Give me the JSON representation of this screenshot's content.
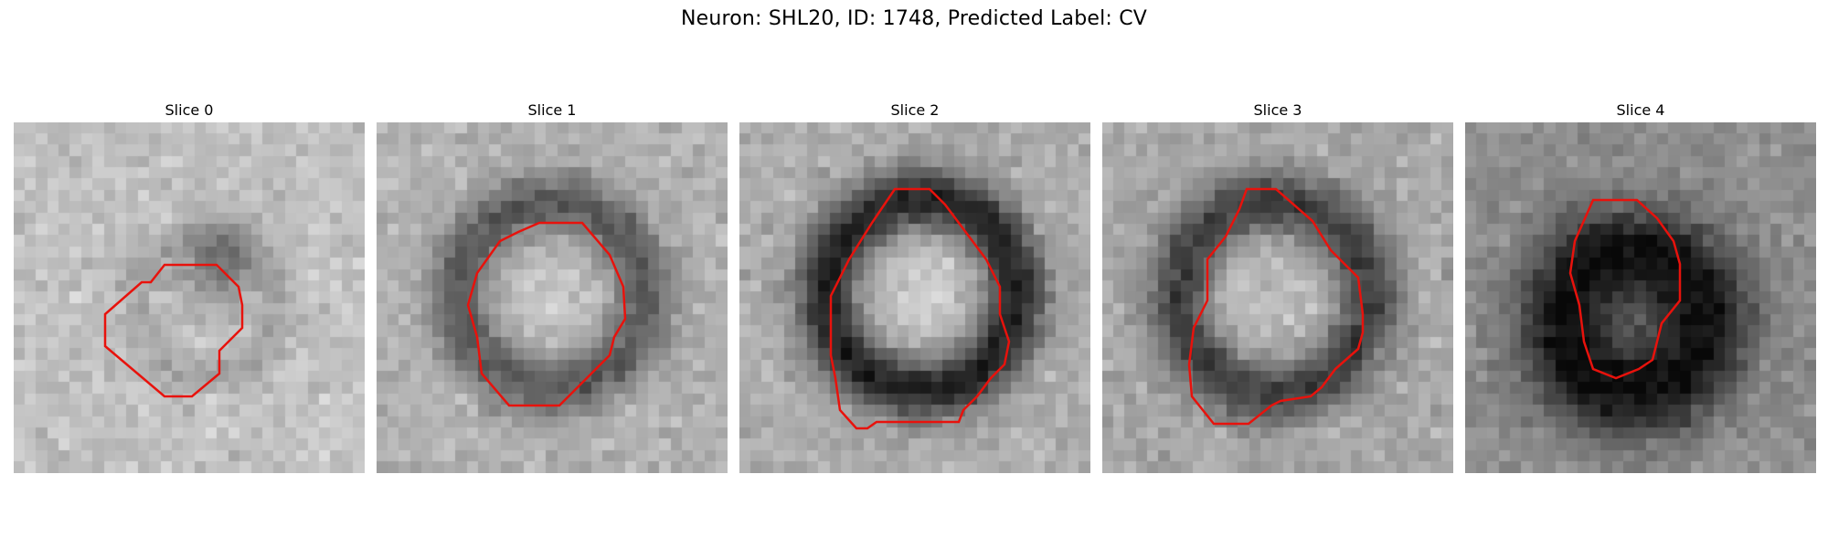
{
  "figure": {
    "title": "Neuron: SHL20, ID: 1748, Predicted Label: CV"
  },
  "contour_color": "#e8120c",
  "colormap": "grayscale",
  "panels": [
    {
      "title": "Slice 0"
    },
    {
      "title": "Slice 1"
    },
    {
      "title": "Slice 2"
    },
    {
      "title": "Slice 3"
    },
    {
      "title": "Slice 4"
    }
  ]
}
